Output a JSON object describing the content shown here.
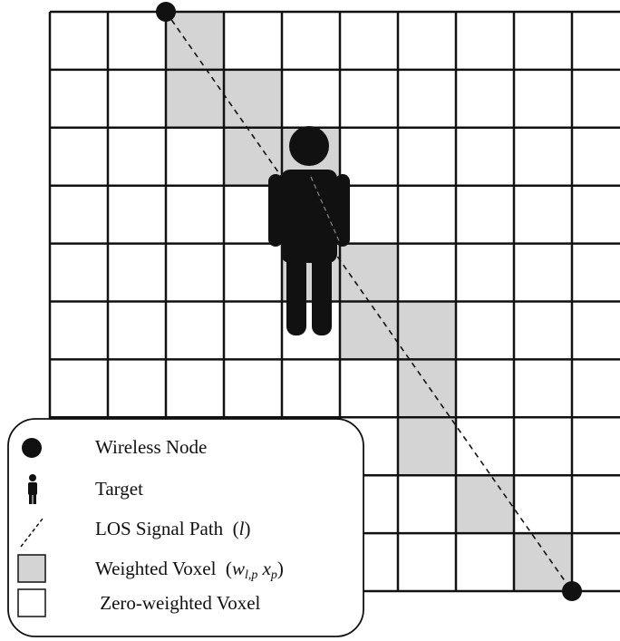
{
  "legend": {
    "items": [
      {
        "parts": [
          {
            "text": "Wireless Node"
          }
        ]
      },
      {
        "parts": [
          {
            "text": "Target"
          }
        ]
      },
      {
        "parts": [
          {
            "text": "LOS Signal Path  ("
          },
          {
            "text": "l",
            "style": "italic"
          },
          {
            "text": ")"
          }
        ]
      },
      {
        "parts": [
          {
            "text": "Weighted Voxel  ("
          },
          {
            "text": "w",
            "style": "italic"
          },
          {
            "text": "l,p",
            "style": "sub"
          },
          {
            "text": " x",
            "style": "italic"
          },
          {
            "text": "p",
            "style": "sub"
          },
          {
            "text": ")"
          }
        ]
      },
      {
        "parts": [
          {
            "text": " Zero-weighted Voxel"
          }
        ]
      }
    ]
  }
}
